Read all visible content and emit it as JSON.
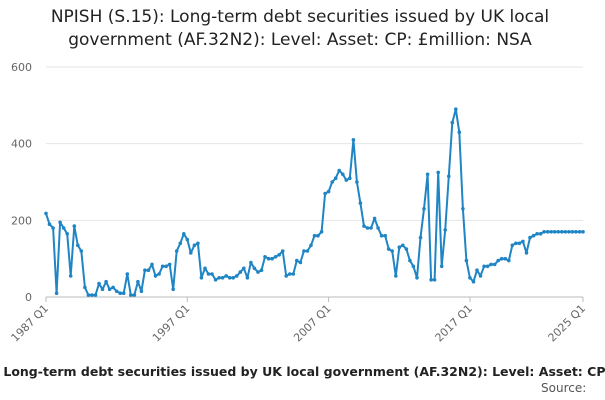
{
  "chart_data": {
    "type": "line",
    "title_line1": "NPISH (S.15): Long-term debt securities issued by UK local",
    "title_line2": "government (AF.32N2): Level: Asset: CP: £million: NSA",
    "legend_label": ": Long-term debt securities issued by UK local government (AF.32N2): Level: Asset: CP",
    "source_label": "Source:",
    "xlabel": "",
    "ylabel": "",
    "ylim": [
      0,
      600
    ],
    "y_ticks": [
      0,
      200,
      400,
      600
    ],
    "x_ticks": [
      "1987 Q1",
      "1997 Q1",
      "2007 Q1",
      "2017 Q1",
      "2025 Q1"
    ],
    "x_tick_positions": [
      1987.0,
      1997.0,
      2007.0,
      2017.0,
      2025.0
    ],
    "xlim": [
      1987.0,
      2025.0
    ],
    "grid": "horizontal",
    "series": [
      {
        "color": "#1f85c4",
        "x": [
          1987.0,
          1987.25,
          1987.5,
          1987.75,
          1988.0,
          1988.25,
          1988.5,
          1988.75,
          1989.0,
          1989.25,
          1989.5,
          1989.75,
          1990.0,
          1990.25,
          1990.5,
          1990.75,
          1991.0,
          1991.25,
          1991.5,
          1991.75,
          1992.0,
          1992.25,
          1992.5,
          1992.75,
          1993.0,
          1993.25,
          1993.5,
          1993.75,
          1994.0,
          1994.25,
          1994.5,
          1994.75,
          1995.0,
          1995.25,
          1995.5,
          1995.75,
          1996.0,
          1996.25,
          1996.5,
          1996.75,
          1997.0,
          1997.25,
          1997.5,
          1997.75,
          1998.0,
          1998.25,
          1998.5,
          1998.75,
          1999.0,
          1999.25,
          1999.5,
          1999.75,
          2000.0,
          2000.25,
          2000.5,
          2000.75,
          2001.0,
          2001.25,
          2001.5,
          2001.75,
          2002.0,
          2002.25,
          2002.5,
          2002.75,
          2003.0,
          2003.25,
          2003.5,
          2003.75,
          2004.0,
          2004.25,
          2004.5,
          2004.75,
          2005.0,
          2005.25,
          2005.5,
          2005.75,
          2006.0,
          2006.25,
          2006.5,
          2006.75,
          2007.0,
          2007.25,
          2007.5,
          2007.75,
          2008.0,
          2008.25,
          2008.5,
          2008.75,
          2009.0,
          2009.25,
          2009.5,
          2009.75,
          2010.0,
          2010.25,
          2010.5,
          2010.75,
          2011.0,
          2011.25,
          2011.5,
          2011.75,
          2012.0,
          2012.25,
          2012.5,
          2012.75,
          2013.0,
          2013.25,
          2013.5,
          2013.75,
          2014.0,
          2014.25,
          2014.5,
          2014.75,
          2015.0,
          2015.25,
          2015.5,
          2015.75,
          2016.0,
          2016.25,
          2016.5,
          2016.75,
          2017.0,
          2017.25,
          2017.5,
          2017.75,
          2018.0,
          2018.25,
          2018.5,
          2018.75,
          2019.0,
          2019.25,
          2019.5,
          2019.75,
          2020.0,
          2020.25,
          2020.5,
          2020.75,
          2021.0,
          2021.25,
          2021.5,
          2021.75,
          2022.0,
          2022.25,
          2022.5,
          2022.75,
          2023.0,
          2023.25,
          2023.5,
          2023.75,
          2024.0,
          2024.25,
          2024.5,
          2024.75,
          2025.0
        ],
        "values": [
          218,
          190,
          180,
          10,
          195,
          180,
          165,
          55,
          185,
          135,
          120,
          25,
          5,
          5,
          5,
          35,
          20,
          40,
          20,
          25,
          15,
          10,
          10,
          60,
          5,
          5,
          40,
          15,
          70,
          70,
          85,
          55,
          60,
          80,
          80,
          85,
          20,
          120,
          140,
          165,
          150,
          115,
          135,
          140,
          50,
          75,
          60,
          60,
          45,
          50,
          50,
          55,
          50,
          50,
          55,
          65,
          75,
          50,
          90,
          75,
          65,
          70,
          105,
          100,
          100,
          105,
          110,
          120,
          55,
          60,
          60,
          95,
          90,
          120,
          120,
          135,
          160,
          160,
          170,
          270,
          275,
          300,
          310,
          330,
          320,
          305,
          310,
          410,
          300,
          245,
          185,
          180,
          180,
          205,
          180,
          160,
          160,
          125,
          120,
          55,
          130,
          135,
          125,
          95,
          80,
          50,
          155,
          230,
          320,
          45,
          45,
          325,
          80,
          175,
          315,
          455,
          490,
          430,
          230,
          95,
          50,
          40,
          70,
          55,
          80,
          80,
          85,
          85,
          95,
          100,
          100,
          95,
          135,
          140,
          140,
          145,
          115,
          155,
          160,
          165,
          165,
          170,
          170,
          170,
          170,
          170,
          170,
          170,
          170,
          170,
          170,
          170,
          170
        ]
      }
    ]
  }
}
